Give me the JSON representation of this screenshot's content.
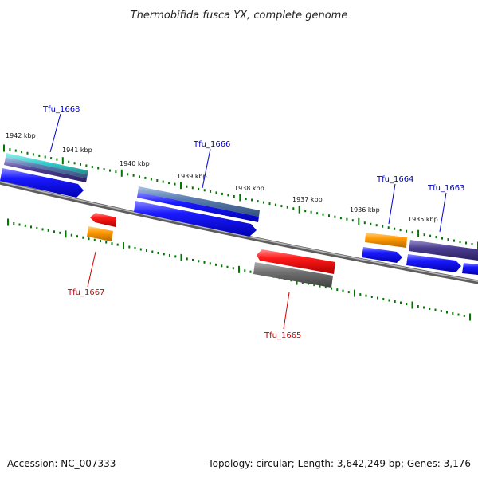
{
  "title": "Thermobifida fusca YX, complete genome",
  "footer": {
    "accession": "Accession: NC_007333",
    "summary": "Topology: circular; Length: 3,642,249 bp; Genes: 3,176"
  },
  "ticks": [
    "1942 kbp",
    "1941 kbp",
    "1940 kbp",
    "1939 kbp",
    "1938 kbp",
    "1937 kbp",
    "1936 kbp",
    "1935 kbp"
  ],
  "gene_labels": [
    {
      "name": "Tfu_1668",
      "color": "#0000cc"
    },
    {
      "name": "Tfu_1666",
      "color": "#0000cc"
    },
    {
      "name": "Tfu_1664",
      "color": "#0000cc"
    },
    {
      "name": "Tfu_1663",
      "color": "#0000cc"
    },
    {
      "name": "Tfu_1667",
      "color": "#cc0000"
    },
    {
      "name": "Tfu_1665",
      "color": "#cc0000"
    }
  ],
  "colors": {
    "backbone": "#8c8c8c",
    "cds_forward": "#1a1aff",
    "cds_reverse": "#ff1a1a",
    "orange": "#ff9900",
    "teal": "#33cccc",
    "steelblue": "#5a7fb0",
    "purple": "#4a3d8f",
    "gray": "#707070",
    "tick_green": "#007700"
  }
}
